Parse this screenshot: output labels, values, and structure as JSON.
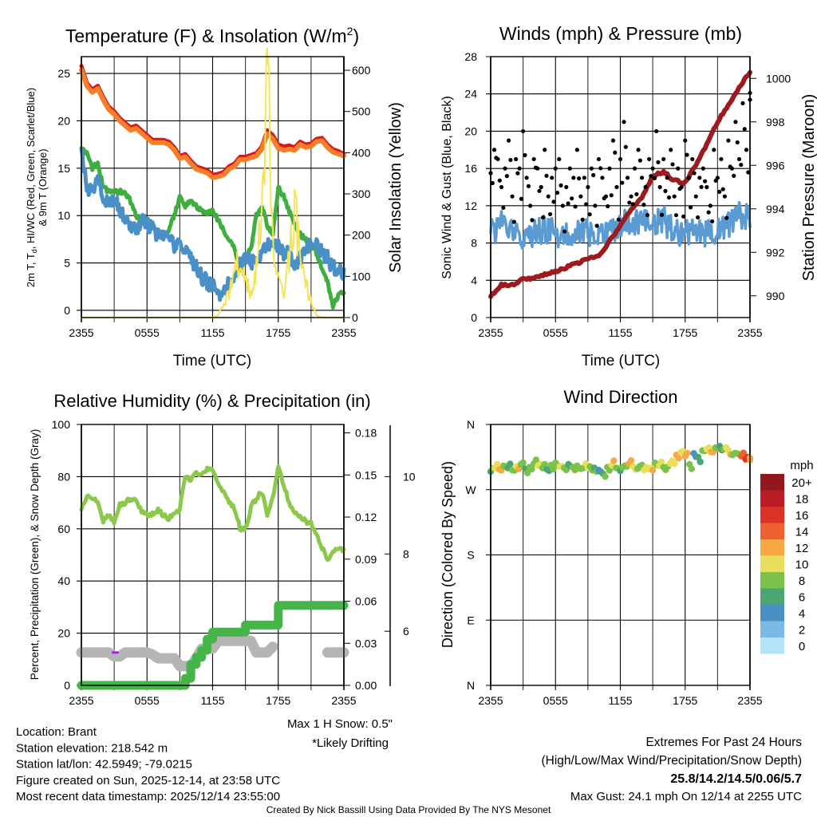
{
  "colors": {
    "temp": "#d7191c",
    "temp9m": "#f57f29",
    "dewpoint": "#3fae3f",
    "windchill": "#4a90c8",
    "insolation": "#f5e35a",
    "wind": "#5a9bd4",
    "gust": "#000000",
    "pressure": "#9b1b1e",
    "rh": "#8cc84b",
    "precip": "#45b549",
    "snow": "#b5b5b5",
    "drift": "#a020f0"
  },
  "chart_data": [
    {
      "type": "line",
      "id": "temperature",
      "title": "Temperature (F) & Insolation (W/m",
      "title_sup": "2",
      "title_end": ")",
      "xlabel": "Time (UTC)",
      "ylabel_a": "2m T, T",
      "ylabel_sub": "d",
      "ylabel_b": ", HI/WC (Red, Green, Scarlet/Blue)",
      "ylabel_2": "& 9m T (Orange)",
      "y2label": "Solar Insolation (Yellow)",
      "x_ticks": [
        "2355",
        "0555",
        "1155",
        "1755",
        "2355"
      ],
      "y_ticks": [
        "0",
        "5",
        "10",
        "15",
        "20",
        "25"
      ],
      "y2_ticks": [
        "0",
        "100",
        "200",
        "300",
        "400",
        "500",
        "600"
      ],
      "ylim": [
        -0.76,
        26.77
      ],
      "y2lim": [
        0,
        633
      ],
      "x_step_hours": 0.5,
      "series": [
        {
          "name": "2m Temperature",
          "key": "temp",
          "axis": "left",
          "values": [
            25.8,
            24,
            23.3,
            23.7,
            22.5,
            21.5,
            21,
            20.3,
            19.8,
            19.3,
            19.5,
            19,
            18.5,
            18,
            18,
            18,
            17.8,
            17.2,
            16.3,
            16.5,
            15.8,
            15.2,
            15,
            14.8,
            14.3,
            14.4,
            14.6,
            15.2,
            15.5,
            16.2,
            16.2,
            16.4,
            16.6,
            17.3,
            19,
            18.5,
            17.5,
            17.3,
            17.4,
            17.2,
            17.8,
            17.5,
            17.6,
            18.1,
            18.2,
            17.5,
            17,
            16.8,
            16.5
          ]
        },
        {
          "name": "9m Temperature",
          "key": "temp9m",
          "axis": "left",
          "values": [
            25.4,
            23.7,
            23,
            23.4,
            22.2,
            21.2,
            20.7,
            20,
            19.5,
            19,
            19.2,
            18.7,
            18.2,
            17.7,
            17.7,
            17.7,
            17.5,
            16.9,
            16,
            16.2,
            15.5,
            14.9,
            14.7,
            14.5,
            14,
            14.1,
            14.3,
            14.9,
            15.2,
            15.9,
            15.9,
            16.1,
            16.3,
            17,
            18.6,
            18.1,
            17.1,
            16.9,
            17,
            16.9,
            17.5,
            17.2,
            17.3,
            17.8,
            17.9,
            17.2,
            16.7,
            16.5,
            16.3
          ]
        },
        {
          "name": "Dewpoint",
          "key": "dewpoint",
          "axis": "left",
          "values": [
            17,
            16.5,
            15,
            15.5,
            13,
            12.5,
            12.5,
            12.5,
            12.5,
            11.5,
            10,
            9.5,
            9.5,
            9,
            8.2,
            8,
            8.5,
            10,
            12,
            11,
            11.5,
            11,
            10.5,
            10.3,
            10.5,
            9.5,
            8.5,
            7.5,
            6.5,
            4.2,
            5.5,
            6.5,
            10,
            11,
            9,
            8,
            13,
            12,
            10.5,
            9,
            8,
            7.5,
            7,
            6,
            4.5,
            3,
            0.5,
            1.5,
            2
          ]
        },
        {
          "name": "Wind Chill",
          "key": "windchill",
          "axis": "left",
          "values": [
            16.5,
            13,
            12.5,
            14.5,
            12,
            11,
            12,
            10.5,
            10,
            9,
            8.5,
            9.5,
            9,
            8.5,
            8,
            7.5,
            8,
            6.5,
            7,
            6.5,
            5.5,
            4.5,
            3.5,
            3,
            2.5,
            1.8,
            2,
            3,
            4,
            5,
            5.5,
            5,
            5.5,
            6,
            7,
            6.5,
            7,
            6,
            6,
            5,
            5.5,
            6,
            7,
            7,
            6,
            5.5,
            4.5,
            4,
            4
          ]
        },
        {
          "name": "Solar Insolation",
          "key": "insolation",
          "axis": "right",
          "values": [
            0,
            0,
            0,
            0,
            0,
            0,
            0,
            0,
            0,
            0,
            0,
            0,
            0,
            0,
            0,
            0,
            0,
            0,
            0,
            0,
            0,
            0,
            0,
            0,
            0,
            5,
            30,
            60,
            100,
            150,
            90,
            60,
            120,
            280,
            630,
            200,
            100,
            50,
            150,
            280,
            150,
            80,
            40,
            5,
            0,
            0,
            0,
            0,
            0
          ]
        }
      ]
    },
    {
      "type": "line",
      "id": "winds",
      "title": "Winds (mph) & Pressure (mb)",
      "xlabel": "Time (UTC)",
      "ylabel": "Sonic Wind & Gust (Blue, Black)",
      "y2label": "Station Pressure (Maroon)",
      "x_ticks": [
        "2355",
        "0555",
        "1155",
        "1755",
        "2355"
      ],
      "y_ticks": [
        "0",
        "4",
        "8",
        "12",
        "16",
        "20",
        "24",
        "28"
      ],
      "y2_ticks": [
        "990",
        "992",
        "994",
        "996",
        "998",
        "1000"
      ],
      "ylim": [
        0,
        28
      ],
      "y2lim": [
        989.0,
        1001.0
      ],
      "wind_hourly": [
        9,
        10,
        9,
        8.5,
        9,
        9.5,
        9,
        9,
        9.5,
        9,
        9,
        9,
        10,
        10.5,
        10,
        10,
        10.5,
        9,
        9,
        9.5,
        9,
        9.5,
        10,
        11,
        11
      ],
      "gusts": [
        15.5,
        18,
        17,
        14,
        16,
        19,
        13,
        17,
        16,
        20,
        15,
        12,
        17,
        16,
        14,
        18,
        13,
        15,
        16,
        17,
        12,
        14,
        16,
        15,
        18,
        13,
        15,
        14,
        16,
        12,
        17,
        15,
        13,
        16,
        19,
        14,
        17,
        21,
        15,
        13,
        16,
        18,
        15,
        14,
        17,
        16,
        20,
        14,
        17,
        15,
        18,
        13,
        16,
        14,
        19,
        15,
        17,
        13,
        15,
        16,
        14,
        12,
        18,
        15,
        17,
        13,
        19,
        16,
        21,
        17,
        23,
        18,
        24.1
      ],
      "pressure_hourly": [
        990,
        990.5,
        990.5,
        990.8,
        990.8,
        991,
        991.1,
        991.3,
        991.5,
        991.7,
        991.8,
        992.5,
        993.2,
        994,
        994.5,
        995.5,
        995.7,
        995.3,
        995.2,
        996,
        997,
        998,
        998.8,
        999.6,
        1000.3
      ]
    },
    {
      "type": "line",
      "id": "humidity",
      "title": "Relative Humidity (%) & Precipitation (in)",
      "ylabel": "Percent, Precipitation (Green), & Snow Depth (Gray)",
      "x_ticks": [
        "2355",
        "0555",
        "1155",
        "1755",
        "2355"
      ],
      "y_ticks": [
        "0",
        "20",
        "40",
        "60",
        "80",
        "100"
      ],
      "y2_ticks": [
        "0.00",
        "0.03",
        "0.06",
        "0.09",
        "0.12",
        "0.15",
        "0.18"
      ],
      "y3_ticks": [
        "6",
        "8",
        "10"
      ],
      "ylim": [
        0,
        100
      ],
      "y2lim": [
        0,
        0.186
      ],
      "y3lim": [
        4.6,
        11.35
      ],
      "x_step_hours": 0.5,
      "rh": [
        67,
        73,
        72,
        71,
        63,
        65,
        63,
        69,
        70,
        72,
        71,
        67,
        65,
        66,
        67,
        65,
        64,
        65,
        68,
        80,
        78,
        82,
        80,
        83,
        82,
        78,
        74,
        70,
        68,
        60,
        60,
        68,
        72,
        74,
        65,
        72,
        84,
        77,
        70,
        67,
        65,
        63,
        62,
        57,
        53,
        48,
        52,
        52,
        52
      ],
      "precip": [
        0,
        0,
        0,
        0,
        0,
        0,
        0,
        0,
        0,
        0,
        0,
        0,
        0,
        0,
        0,
        0,
        0,
        0,
        0,
        0.005,
        0.015,
        0.02,
        0.025,
        0.033,
        0.038,
        0.038,
        0.038,
        0.038,
        0.038,
        0.038,
        0.043,
        0.043,
        0.043,
        0.043,
        0.043,
        0.043,
        0.057,
        0.057,
        0.057,
        0.057,
        0.057,
        0.057,
        0.057,
        0.057,
        0.057,
        0.057,
        0.057,
        0.057,
        0.057
      ],
      "snow_depth": [
        5.45,
        5.45,
        5.45,
        5.45,
        5.45,
        5.45,
        5.35,
        5.35,
        5.45,
        5.45,
        5.45,
        5.45,
        5.45,
        5.4,
        5.3,
        5.3,
        5.3,
        5.3,
        5.1,
        5.1,
        5.1,
        5.3,
        5.55,
        5.55,
        5.55,
        5.75,
        5.75,
        5.75,
        5.75,
        5.75,
        5.75,
        5.75,
        5.45,
        5.45,
        5.45,
        5.6,
        null,
        null,
        null,
        null,
        null,
        null,
        null,
        null,
        null,
        5.45,
        5.45,
        5.45,
        5.45
      ],
      "drift_flags": [
        {
          "hour": 3.1,
          "snow_depth": 5.45
        }
      ],
      "max_snow_note": "Max 1 H Snow: 0.5\"",
      "drift_note": "*Likely Drifting"
    },
    {
      "type": "scatter",
      "id": "direction",
      "title": "Wind Direction",
      "ylabel": "Direction (Colored By Speed)",
      "x_ticks": [
        "2355",
        "0555",
        "1155",
        "1755",
        "2355"
      ],
      "y_ticks": [
        "N",
        "E",
        "S",
        "W",
        "N"
      ],
      "ylim": [
        0,
        360
      ],
      "directions": [
        295,
        300,
        298,
        303,
        300,
        297,
        302,
        305,
        299,
        301,
        306,
        303,
        300,
        298,
        304,
        307,
        302,
        300,
        305,
        301,
        303,
        299,
        306,
        302,
        300,
        297,
        292,
        301,
        304,
        300,
        296,
        303,
        306,
        302,
        299,
        304,
        301,
        300,
        307,
        303,
        301,
        302,
        310,
        318,
        322,
        316,
        305,
        320,
        315,
        324,
        326,
        322,
        328,
        330,
        326,
        324,
        318,
        320,
        316,
        312,
        314
      ],
      "speeds": [
        7,
        10,
        12,
        8,
        6,
        9,
        10,
        8,
        7,
        8,
        9,
        10,
        8,
        7,
        8,
        9,
        10,
        8,
        7,
        8,
        9,
        8,
        10,
        9,
        6,
        5,
        7,
        8,
        10,
        8,
        7,
        9,
        12,
        10,
        9,
        8,
        10,
        11,
        9,
        10,
        8,
        9,
        10,
        12,
        10,
        13,
        8,
        5,
        7,
        9,
        10,
        12,
        8,
        7,
        9,
        10,
        8,
        9,
        14,
        16,
        12
      ],
      "colorbar": {
        "title": "mph",
        "labels": [
          "20+",
          "18",
          "16",
          "14",
          "12",
          "10",
          "8",
          "6",
          "4",
          "2",
          "0"
        ],
        "colors": [
          "#92171c",
          "#b91c24",
          "#dc3328",
          "#ef6030",
          "#f7a945",
          "#e8e05a",
          "#7bc24a",
          "#4ba672",
          "#4a90c4",
          "#7ab9e3",
          "#b3e3f7"
        ]
      }
    }
  ],
  "footer": {
    "location": "Location: Brant",
    "elevation": "Station elevation: 218.542 m",
    "latlon": "Station lat/lon: 42.5949; -79.0215",
    "created": "Figure created on Sun, 2025-12-14, at 23:58 UTC",
    "timestamp": "Most recent data timestamp: 2025/12/14 23:55:00",
    "extremes_title": "Extremes For Past 24 Hours",
    "extremes_legend": "(High/Low/Max Wind/Precipitation/Snow Depth)",
    "extremes_values": "25.8/14.2/14.5/0.06/5.7",
    "max_gust": "Max Gust: 24.1 mph On 12/14 at 2255 UTC",
    "credit": "Created By Nick Bassill Using Data Provided By The NYS Mesonet"
  }
}
